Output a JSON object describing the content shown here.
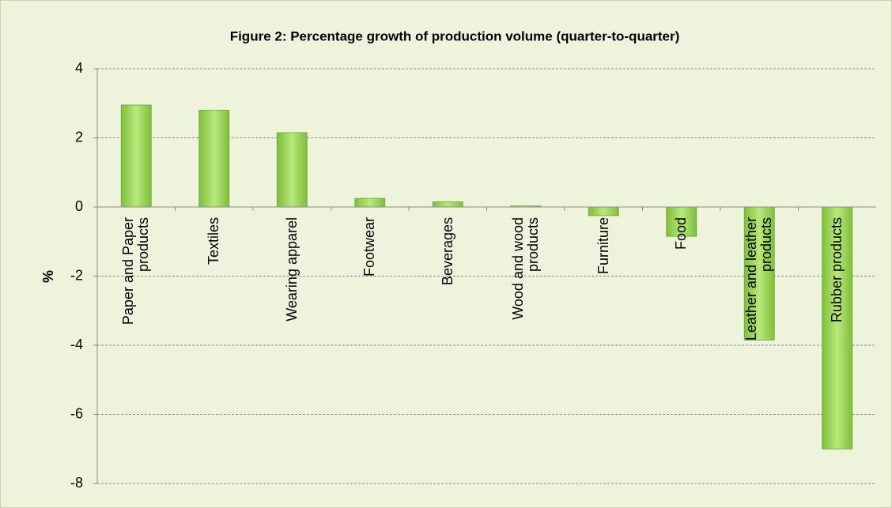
{
  "chart_data": {
    "type": "bar",
    "title": "Figure 2: Percentage growth of production volume (quarter-to-quarter)",
    "y_label": "%",
    "categories": [
      "Paper and Paper products",
      "Textiles",
      "Wearing apparel",
      "Footwear",
      "Beverages",
      "Wood and wood products",
      "Furniture",
      "Food",
      "Leather and leather products",
      "Rubber products"
    ],
    "values": [
      2.95,
      2.8,
      2.15,
      0.25,
      0.15,
      0.03,
      -0.25,
      -0.85,
      -3.85,
      -7.0
    ],
    "color": "#92d050",
    "ylim": [
      -8,
      4
    ],
    "yticks": [
      -8,
      -6,
      -4,
      -2,
      0,
      2,
      4
    ],
    "grid": true
  }
}
